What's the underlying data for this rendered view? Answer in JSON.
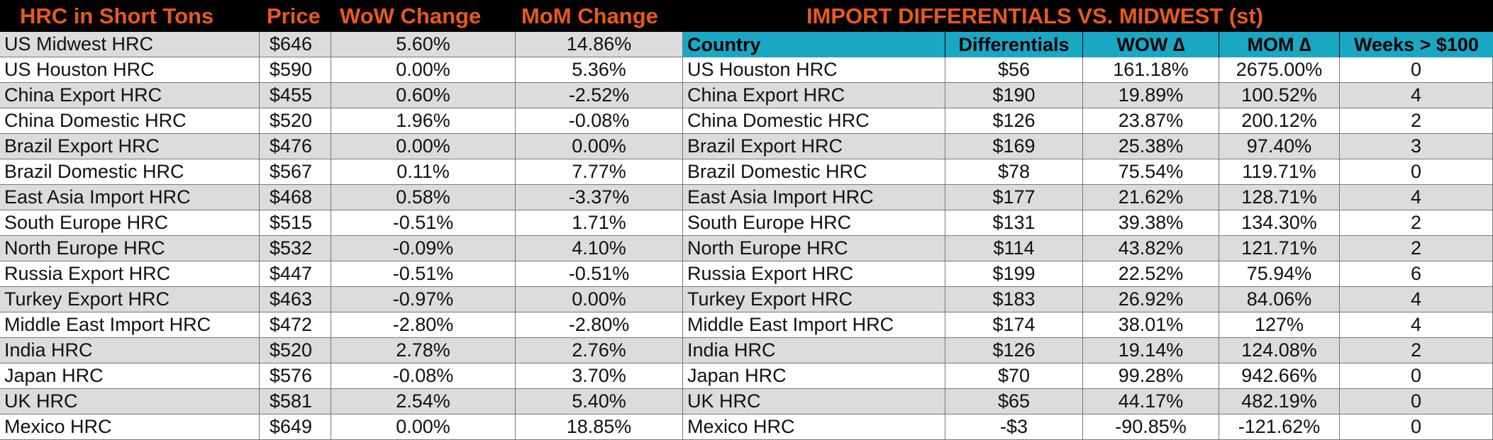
{
  "left": {
    "headers": [
      "HRC in Short Tons",
      "Price",
      "WoW Change",
      "MoM Change"
    ],
    "rows": [
      [
        "US Midwest HRC",
        "$646",
        "5.60%",
        "14.86%"
      ],
      [
        "US Houston HRC",
        "$590",
        "0.00%",
        "5.36%"
      ],
      [
        "China Export HRC",
        "$455",
        "0.60%",
        "-2.52%"
      ],
      [
        "China Domestic HRC",
        "$520",
        "1.96%",
        "-0.08%"
      ],
      [
        "Brazil Export HRC",
        "$476",
        "0.00%",
        "0.00%"
      ],
      [
        "Brazil Domestic HRC",
        "$567",
        "0.11%",
        "7.77%"
      ],
      [
        "East Asia Import HRC",
        "$468",
        "0.58%",
        "-3.37%"
      ],
      [
        "South Europe HRC",
        "$515",
        "-0.51%",
        "1.71%"
      ],
      [
        "North Europe HRC",
        "$532",
        "-0.09%",
        "4.10%"
      ],
      [
        "Russia Export HRC",
        "$447",
        "-0.51%",
        "-0.51%"
      ],
      [
        "Turkey Export HRC",
        "$463",
        "-0.97%",
        "0.00%"
      ],
      [
        "Middle East Import HRC",
        "$472",
        "-2.80%",
        "-2.80%"
      ],
      [
        "India HRC",
        "$520",
        "2.78%",
        "2.76%"
      ],
      [
        "Japan HRC",
        "$576",
        "-0.08%",
        "3.70%"
      ],
      [
        "UK HRC",
        "$581",
        "2.54%",
        "5.40%"
      ],
      [
        "Mexico HRC",
        "$649",
        "0.00%",
        "18.85%"
      ]
    ]
  },
  "right": {
    "title": "IMPORT DIFFERENTIALS VS. MIDWEST (st)",
    "headers": [
      "Country",
      "Differentials",
      "WOW ∆",
      "MOM ∆",
      "Weeks > $100"
    ],
    "rows": [
      [
        "US Houston HRC",
        "$56",
        "161.18%",
        "2675.00%",
        "0"
      ],
      [
        "China Export HRC",
        "$190",
        "19.89%",
        "100.52%",
        "4"
      ],
      [
        "China Domestic HRC",
        "$126",
        "23.87%",
        "200.12%",
        "2"
      ],
      [
        "Brazil Export HRC",
        "$169",
        "25.38%",
        "97.40%",
        "3"
      ],
      [
        "Brazil Domestic HRC",
        "$78",
        "75.54%",
        "119.71%",
        "0"
      ],
      [
        "East Asia Import HRC",
        "$177",
        "21.62%",
        "128.71%",
        "4"
      ],
      [
        "South Europe HRC",
        "$131",
        "39.38%",
        "134.30%",
        "2"
      ],
      [
        "North Europe HRC",
        "$114",
        "43.82%",
        "121.71%",
        "2"
      ],
      [
        "Russia Export HRC",
        "$199",
        "22.52%",
        "75.94%",
        "6"
      ],
      [
        "Turkey Export HRC",
        "$183",
        "26.92%",
        "84.06%",
        "4"
      ],
      [
        "Middle East Import HRC",
        "$174",
        "38.01%",
        "127%",
        "4"
      ],
      [
        "India HRC",
        "$126",
        "19.14%",
        "124.08%",
        "2"
      ],
      [
        "Japan HRC",
        "$70",
        "99.28%",
        "942.66%",
        "0"
      ],
      [
        "UK HRC",
        "$65",
        "44.17%",
        "482.19%",
        "0"
      ],
      [
        "Mexico HRC",
        "-$3",
        "-90.85%",
        "-121.62%",
        "0"
      ]
    ]
  },
  "colors": {
    "title_orange": "#e85a1a",
    "header_teal": "#1aa7c4",
    "row_gray": "#dcdcdc",
    "row_white": "#ffffff",
    "background": "#000000"
  }
}
